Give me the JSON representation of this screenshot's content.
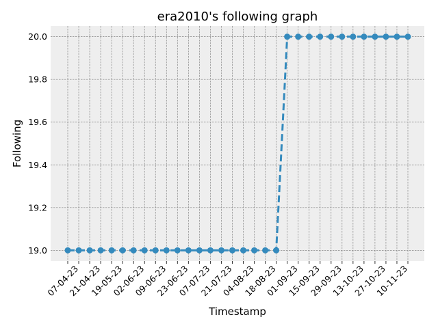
{
  "chart_data": {
    "type": "line",
    "title": "era2010's following graph",
    "xlabel": "Timestamp",
    "ylabel": "Following",
    "ylim": [
      18.95,
      20.05
    ],
    "yticks": [
      "19.0",
      "19.2",
      "19.4",
      "19.6",
      "19.8",
      "20.0"
    ],
    "ytick_values": [
      19.0,
      19.2,
      19.4,
      19.6,
      19.8,
      20.0
    ],
    "xticks": [
      "07-04-23",
      "21-04-23",
      "19-05-23",
      "02-06-23",
      "09-06-23",
      "23-06-23",
      "07-07-23",
      "21-07-23",
      "04-08-23",
      "18-08-23",
      "01-09-23",
      "15-09-23",
      "29-09-23",
      "13-10-23",
      "27-10-23",
      "10-11-23"
    ],
    "grid": true,
    "colors": {
      "line": "#348abd",
      "background": "#eeeeee",
      "grid": "#888888"
    },
    "series": [
      {
        "values": [
          19,
          19,
          19,
          19,
          19,
          19,
          19,
          19,
          19,
          19,
          19,
          19,
          19,
          19,
          19,
          19,
          19,
          19,
          19,
          19,
          20,
          20,
          20,
          20,
          20,
          20,
          20,
          20,
          20,
          20,
          20,
          20
        ]
      }
    ]
  }
}
